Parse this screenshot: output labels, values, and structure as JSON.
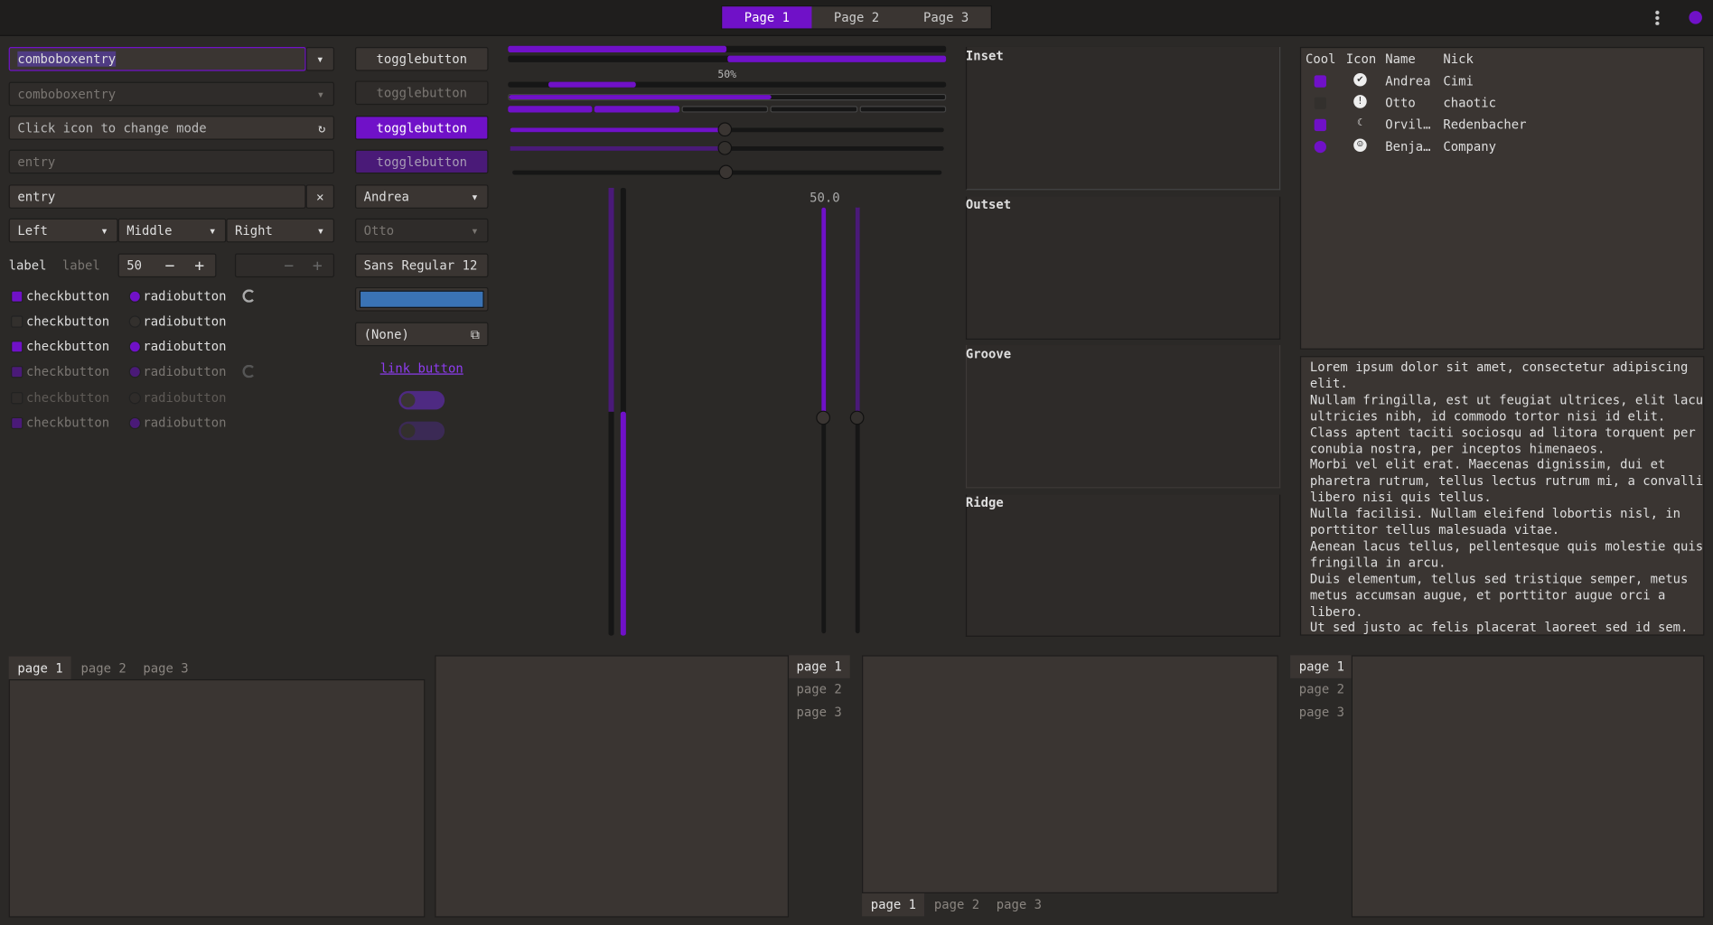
{
  "header": {
    "tabs": [
      "Page 1",
      "Page 2",
      "Page 3"
    ]
  },
  "entries": {
    "combo1": "comboboxentry",
    "combo2": "comboboxentry",
    "icon_entry": "Click icon to change mode",
    "entry1": "entry",
    "entry2": "entry"
  },
  "segmented": [
    "Left",
    "Middle",
    "Right"
  ],
  "labels": [
    "label",
    "label"
  ],
  "spin": "50",
  "checks": [
    "checkbutton",
    "checkbutton",
    "checkbutton",
    "checkbutton",
    "checkbutton",
    "checkbutton"
  ],
  "radios": [
    "radiobutton",
    "radiobutton",
    "radiobutton",
    "radiobutton",
    "radiobutton",
    "radiobutton"
  ],
  "buttons": {
    "toggle": [
      "togglebutton",
      "togglebutton",
      "togglebutton",
      "togglebutton"
    ],
    "combo1": "Andrea",
    "combo2": "Otto",
    "font": "Sans Regular",
    "font_size": "12",
    "file": "(None)",
    "link": "link button"
  },
  "progress_label": "50%",
  "scale_label": "50.0",
  "frames": [
    "Inset",
    "Outset",
    "Groove",
    "Ridge"
  ],
  "tree": {
    "columns": [
      "Cool",
      "Icon",
      "Name",
      "Nick"
    ],
    "rows": [
      [
        "Andrea",
        "Cimi"
      ],
      [
        "Otto",
        "chaotic"
      ],
      [
        "Orvil…",
        "Redenbacher"
      ],
      [
        "Benja…",
        "Company"
      ]
    ]
  },
  "text_view": [
    "Lorem ipsum dolor sit amet, consectetur adipiscing",
    "elit.",
    "Nullam fringilla, est ut feugiat ultrices, elit lacus",
    "ultricies nibh, id commodo tortor nisi id elit.",
    "Class aptent taciti sociosqu ad litora torquent per",
    "conubia nostra, per inceptos himenaeos.",
    "Morbi vel elit erat. Maecenas dignissim, dui et",
    "pharetra rutrum, tellus lectus rutrum mi, a convallis",
    "libero nisi quis tellus.",
    "Nulla facilisi. Nullam eleifend lobortis nisl, in",
    "porttitor tellus malesuada vitae.",
    "Aenean lacus tellus, pellentesque quis molestie quis,",
    "fringilla in arcu.",
    "Duis elementum, tellus sed tristique semper, metus",
    "metus accumsan augue, et porttitor augue orci a",
    "libero.",
    "Ut sed justo ac felis placerat laoreet sed id sem."
  ],
  "notebooks": [
    [
      "page 1",
      "page 2",
      "page 3"
    ],
    [
      "page 1",
      "page 2",
      "page 3"
    ],
    [
      "page 1",
      "page 2",
      "page 3"
    ],
    [
      "page 1",
      "page 2",
      "page 3"
    ]
  ]
}
